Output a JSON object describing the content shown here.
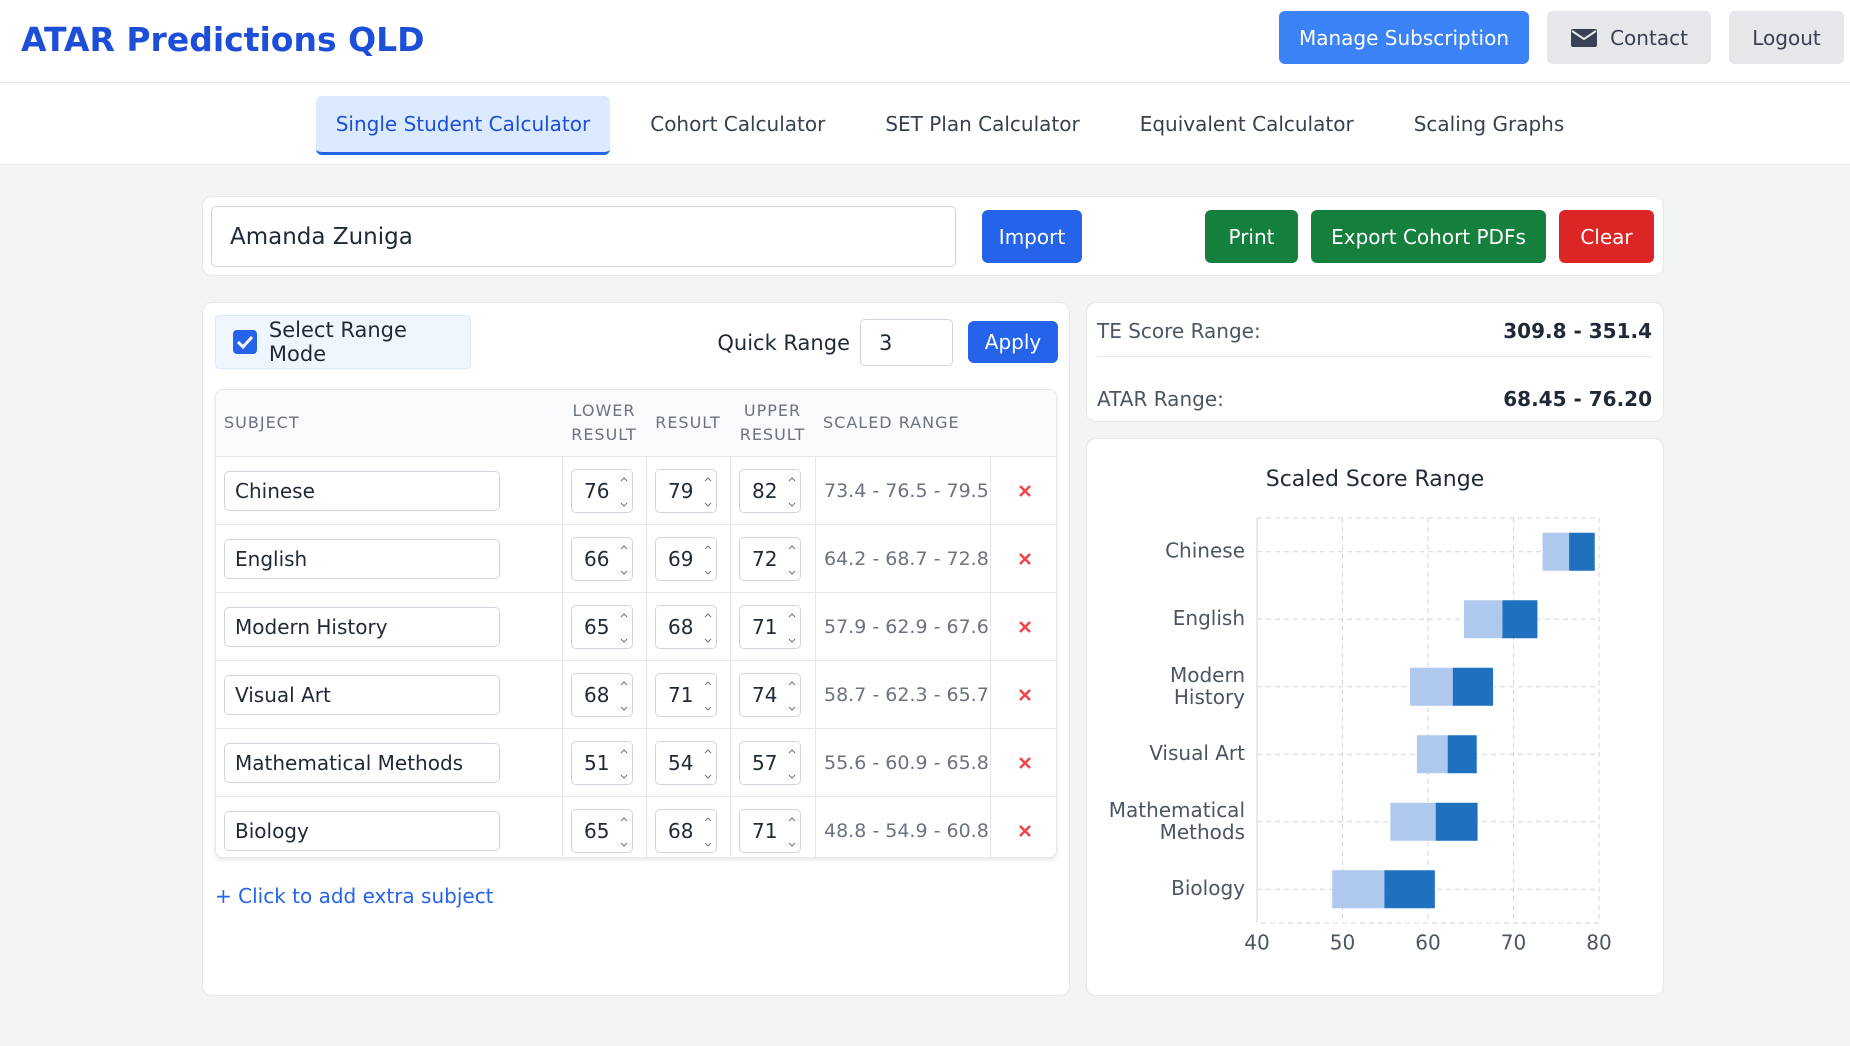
{
  "header": {
    "title": "ATAR Predictions QLD",
    "buttons": [
      "Manage Subscription",
      "Contact",
      "Logout"
    ]
  },
  "tabs": [
    "Single Student Calculator",
    "Cohort Calculator",
    "SET Plan Calculator",
    "Equivalent Calculator",
    "Scaling Graphs"
  ],
  "student": {
    "name": "Amanda Zuniga",
    "buttons": [
      "Import",
      "Print",
      "Export Cohort PDFs",
      "Clear"
    ]
  },
  "range_mode": {
    "label": "Select Range Mode",
    "quick_range_label": "Quick Range",
    "quick_range": 3,
    "apply": "Apply"
  },
  "table": {
    "headers": [
      "SUBJECT",
      "LOWER RESULT",
      "RESULT",
      "UPPER RESULT",
      "SCALED RANGE"
    ],
    "rows": [
      [
        "Chinese",
        76,
        79,
        82,
        "73.4 - 76.5 - 79.5"
      ],
      [
        "English",
        66,
        69,
        72,
        "64.2 - 68.7 - 72.8"
      ],
      [
        "Modern History",
        65,
        68,
        71,
        "57.9 - 62.9 - 67.6"
      ],
      [
        "Visual Art",
        68,
        71,
        74,
        "58.7 - 62.3 - 65.7"
      ],
      [
        "Mathematical Methods",
        51,
        54,
        57,
        "55.6 - 60.9 - 65.8"
      ],
      [
        "Biology",
        65,
        68,
        71,
        "48.8 - 54.9 - 60.8"
      ]
    ]
  },
  "add_subject": "+ Click to add extra subject",
  "summary": [
    {
      "label": "TE Score Range:",
      "value": "309.8 - 351.4"
    },
    {
      "label": "ATAR Range:",
      "value": "68.45 - 76.20"
    }
  ],
  "chart_data": {
    "type": "range_bar",
    "title": "Scaled Score Range",
    "categories": [
      "Chinese",
      "English",
      "Modern History",
      "Visual Art",
      "Mathematical Methods",
      "Biology"
    ],
    "low": [
      73.4,
      64.2,
      57.9,
      58.7,
      55.6,
      48.8
    ],
    "mid": [
      76.5,
      68.7,
      62.9,
      62.3,
      60.9,
      54.9
    ],
    "high": [
      79.5,
      72.8,
      67.6,
      65.7,
      65.8,
      60.8
    ],
    "colors": {
      "lower": "#aec8ee",
      "upper": "#1f71bf"
    },
    "xlim": [
      40,
      80
    ],
    "xticks": [
      40,
      50,
      60,
      70,
      80
    ],
    "grid": true
  }
}
